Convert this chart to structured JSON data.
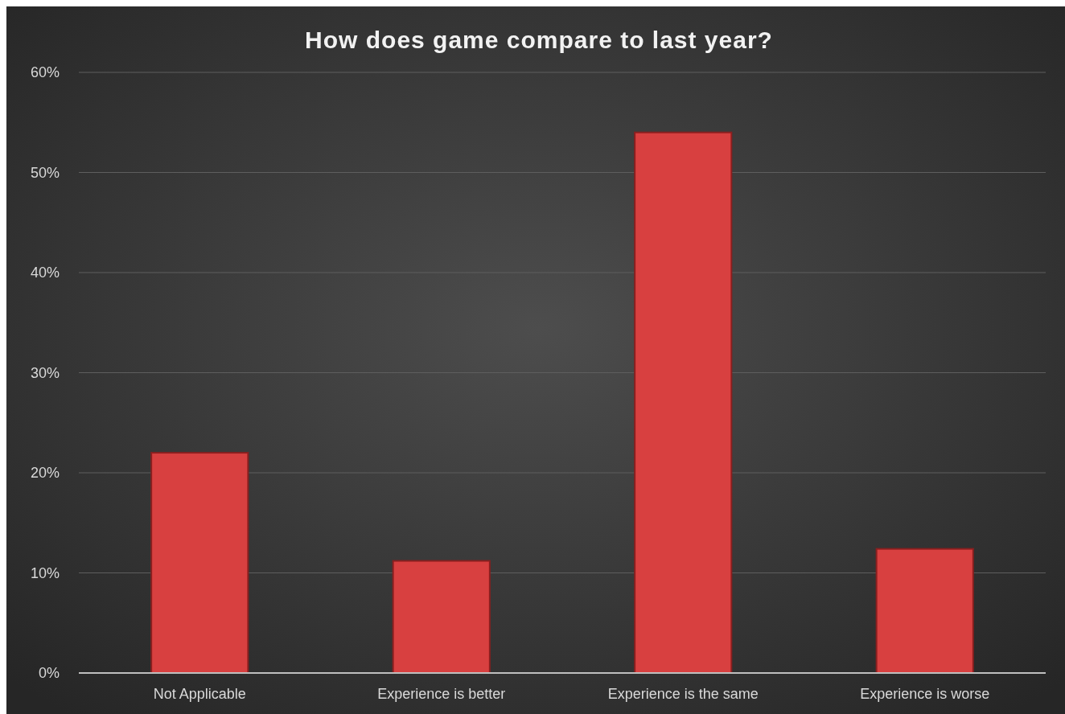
{
  "chart_data": {
    "type": "bar",
    "title": "How does game compare to last year?",
    "categories": [
      "Not Applicable",
      "Experience is better",
      "Experience is the same",
      "Experience is worse"
    ],
    "values": [
      22,
      11.2,
      54,
      12.4
    ],
    "color": "#d84040",
    "ylim": [
      0,
      60
    ],
    "yticks": [
      {
        "value": 0,
        "label": "0%"
      },
      {
        "value": 10,
        "label": "10%"
      },
      {
        "value": 20,
        "label": "20%"
      },
      {
        "value": 30,
        "label": "30%"
      },
      {
        "value": 40,
        "label": "40%"
      },
      {
        "value": 50,
        "label": "50%"
      },
      {
        "value": 60,
        "label": "60%"
      }
    ],
    "grid": "y"
  }
}
